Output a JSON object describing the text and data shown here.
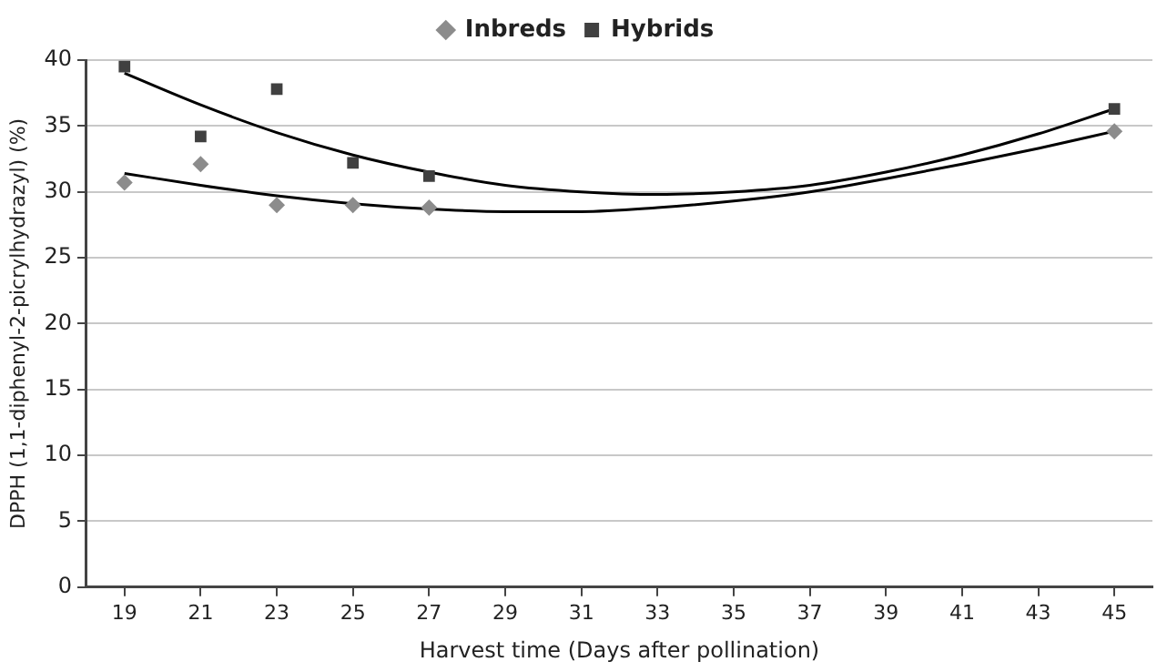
{
  "chart_data": {
    "type": "scatter",
    "xlabel": "Harvest time (Days after pollination)",
    "ylabel": "DPPH (1,1-diphenyl-2-picrylhydrazyl) (%)",
    "xlim": [
      18,
      46
    ],
    "xticks": [
      19,
      21,
      23,
      25,
      27,
      29,
      31,
      33,
      35,
      37,
      39,
      41,
      43,
      45
    ],
    "ylim": [
      0,
      40
    ],
    "yticks": [
      0,
      5,
      10,
      15,
      20,
      25,
      30,
      35,
      40
    ],
    "grid": "y",
    "legend": "top",
    "series": [
      {
        "name": "Inbreds",
        "type": "scatter",
        "marker": "diamond",
        "color": "#8c8c8c",
        "x": [
          19,
          21,
          23,
          25,
          27,
          45
        ],
        "values": [
          30.7,
          32.1,
          29.0,
          29.0,
          28.8,
          34.6
        ]
      },
      {
        "name": "Hybrids",
        "type": "scatter",
        "marker": "square",
        "color": "#404040",
        "x": [
          19,
          21,
          23,
          25,
          27,
          45
        ],
        "values": [
          39.5,
          34.2,
          37.8,
          32.2,
          31.2,
          36.3
        ]
      },
      {
        "type": "line",
        "marker": "none",
        "color": "#000000",
        "x": [
          19,
          21,
          23,
          25,
          27,
          29,
          31,
          33,
          35,
          37,
          39,
          41,
          43,
          45
        ],
        "values": [
          31.4,
          30.5,
          29.7,
          29.1,
          28.7,
          28.5,
          28.5,
          28.8,
          29.3,
          30.0,
          31.0,
          32.1,
          33.3,
          34.6
        ]
      },
      {
        "type": "line",
        "marker": "none",
        "color": "#000000",
        "x": [
          19,
          21,
          23,
          25,
          27,
          29,
          31,
          33,
          35,
          37,
          39,
          41,
          43,
          45
        ],
        "values": [
          39.0,
          36.6,
          34.5,
          32.8,
          31.5,
          30.5,
          30.0,
          29.8,
          30.0,
          30.5,
          31.5,
          32.8,
          34.4,
          36.3
        ]
      }
    ]
  }
}
